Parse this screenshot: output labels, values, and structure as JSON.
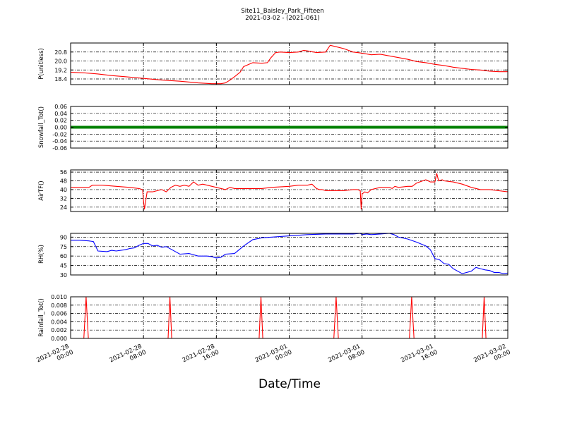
{
  "figure": {
    "title": "Site11_Baisley_Park_Fifteen",
    "subtitle": "2021-03-02 - (2021-061)",
    "xlabel": "Date/Time"
  },
  "chart_data": [
    {
      "type": "line",
      "ylabel": "P(unitless)",
      "color": "#ff0000",
      "xlim": [
        0,
        48
      ],
      "ylim": [
        17.9,
        21.6
      ],
      "yticks": [
        "18.4",
        "19.2",
        "20.0",
        "20.8"
      ],
      "ytick_values": [
        18.4,
        19.2,
        20.0,
        20.8
      ],
      "grid": true,
      "series": [
        {
          "x": [
            0,
            1.5,
            3,
            4.5,
            6,
            8,
            10,
            12,
            14,
            15.5,
            16.5,
            17,
            17.5,
            18,
            18.6,
            19,
            20,
            21,
            21.6,
            22,
            22.5,
            23,
            24,
            25,
            25.6,
            26,
            27,
            28,
            28.5,
            29,
            30,
            31,
            31.5,
            32,
            33,
            34,
            35,
            36,
            37,
            38,
            39,
            40,
            41,
            42,
            43,
            44,
            45,
            46,
            47,
            48
          ],
          "y": [
            19.0,
            18.95,
            18.85,
            18.7,
            18.6,
            18.45,
            18.3,
            18.2,
            18.05,
            17.98,
            17.98,
            18.05,
            18.3,
            18.6,
            19.0,
            19.5,
            19.85,
            19.8,
            19.85,
            20.3,
            20.75,
            20.8,
            20.75,
            20.8,
            20.95,
            20.9,
            20.75,
            20.8,
            21.4,
            21.3,
            21.1,
            20.8,
            20.75,
            20.7,
            20.55,
            20.6,
            20.45,
            20.3,
            20.15,
            19.95,
            19.85,
            19.7,
            19.6,
            19.45,
            19.35,
            19.25,
            19.2,
            19.1,
            19.05,
            19.05
          ]
        }
      ]
    },
    {
      "type": "line",
      "ylabel": "Snowfall_Tot()",
      "color": "#008000",
      "xlim": [
        0,
        48
      ],
      "ylim": [
        -0.06,
        0.06
      ],
      "yticks": [
        "-0.06",
        "-0.04",
        "-0.02",
        "0.00",
        "0.02",
        "0.04",
        "0.06"
      ],
      "ytick_values": [
        -0.06,
        -0.04,
        -0.02,
        0.0,
        0.02,
        0.04,
        0.06
      ],
      "grid": true,
      "series": [
        {
          "x": [
            0,
            48
          ],
          "y": [
            0,
            0
          ]
        }
      ]
    },
    {
      "type": "line",
      "ylabel": "AirTF()",
      "color": "#ff0000",
      "xlim": [
        0,
        48
      ],
      "ylim": [
        20,
        58
      ],
      "yticks": [
        "24",
        "32",
        "40",
        "48",
        "56"
      ],
      "ytick_values": [
        24,
        32,
        40,
        48,
        56
      ],
      "grid": true,
      "series": [
        {
          "x": [
            0,
            2,
            2.4,
            3.5,
            5,
            6.5,
            7.5,
            7.9,
            8.0,
            8.1,
            8.4,
            9,
            10,
            10.5,
            11,
            11.5,
            12,
            12.5,
            13,
            13.5,
            14,
            14.5,
            15,
            16,
            17,
            17.5,
            18,
            19,
            20,
            21,
            22,
            24,
            25,
            26,
            26.5,
            27,
            27.3,
            27.6,
            28,
            29,
            30,
            31,
            31.5,
            31.8,
            31.9,
            32,
            32.3,
            32.6,
            33,
            34,
            35,
            35.3,
            35.6,
            36,
            37,
            37.5,
            38,
            39,
            39.5,
            40,
            40.2,
            40.4,
            40.8,
            41,
            42,
            43,
            44,
            45,
            46,
            47,
            48
          ],
          "y": [
            42,
            42,
            44,
            44,
            43,
            42,
            41,
            40,
            30,
            22,
            38,
            38,
            40,
            38,
            42,
            44,
            43,
            44,
            43,
            47,
            44,
            45,
            44,
            42,
            40,
            42,
            41,
            41,
            41,
            41,
            42,
            43,
            44,
            44,
            45,
            41,
            40,
            40,
            39,
            39,
            39,
            40,
            40,
            39,
            22,
            36,
            38,
            37,
            40,
            42,
            42,
            41,
            43,
            42,
            43,
            43,
            46,
            49,
            47,
            47,
            55,
            48,
            49,
            48,
            47,
            45,
            42,
            40,
            40,
            39,
            38
          ]
        }
      ]
    },
    {
      "type": "line",
      "ylabel": "RH(%)",
      "color": "#0000ff",
      "xlim": [
        0,
        48
      ],
      "ylim": [
        30,
        96
      ],
      "yticks": [
        "30",
        "45",
        "60",
        "75",
        "90"
      ],
      "ytick_values": [
        30,
        45,
        60,
        75,
        90
      ],
      "grid": true,
      "series": [
        {
          "x": [
            0,
            1,
            2,
            2.5,
            3,
            4,
            4.5,
            5,
            6,
            6.5,
            7,
            7.5,
            8,
            8.5,
            9,
            9.5,
            10,
            10.5,
            11,
            12,
            13,
            13.5,
            14,
            15,
            15.5,
            16,
            16.5,
            17,
            18,
            19,
            20,
            21,
            22,
            24,
            26,
            28,
            30,
            31,
            31.8,
            32,
            32.5,
            33,
            34,
            35,
            35.5,
            36,
            37,
            38,
            39,
            39.5,
            40,
            40.5,
            41,
            41.5,
            42,
            43,
            44,
            44.5,
            45,
            45.5,
            46,
            46.5,
            47,
            47.5,
            48
          ],
          "y": [
            85,
            85,
            84,
            83,
            68,
            67,
            69,
            68,
            70,
            72,
            73,
            77,
            80,
            80,
            76,
            77,
            74,
            75,
            71,
            63,
            64,
            62,
            60,
            60,
            59,
            57,
            58,
            63,
            64,
            76,
            86,
            89,
            90,
            92,
            94,
            95,
            95,
            95,
            96,
            94,
            95,
            94,
            95,
            96,
            94,
            90,
            87,
            82,
            76,
            70,
            56,
            54,
            48,
            47,
            40,
            32,
            36,
            42,
            40,
            38,
            37,
            34,
            34,
            32,
            33
          ]
        }
      ]
    },
    {
      "type": "line",
      "ylabel": "Rainfall_Tot()",
      "color": "#ff0000",
      "xlim": [
        0,
        48
      ],
      "ylim": [
        0,
        0.01
      ],
      "yticks": [
        "0.000",
        "0.002",
        "0.004",
        "0.006",
        "0.008",
        "0.010"
      ],
      "ytick_values": [
        0,
        0.002,
        0.004,
        0.006,
        0.008,
        0.01
      ],
      "grid": true,
      "series": [
        {
          "x": [
            0,
            1.45,
            1.7,
            1.95,
            10.7,
            10.9,
            11.1,
            20.7,
            20.9,
            21.1,
            28.9,
            29.15,
            29.4,
            37.2,
            37.45,
            37.7,
            45.2,
            45.4,
            45.6,
            48
          ],
          "y": [
            0,
            0,
            0.01,
            0,
            0,
            0.01,
            0,
            0,
            0.01,
            0,
            0,
            0.01,
            0,
            0,
            0.01,
            0,
            0,
            0.01,
            0,
            0
          ]
        }
      ]
    }
  ],
  "x_axis": {
    "ticks": [
      {
        "value": 0,
        "date": "2021-02-28",
        "time": "00:00"
      },
      {
        "value": 8,
        "date": "2021-02-28",
        "time": "08:00"
      },
      {
        "value": 16,
        "date": "2021-02-28",
        "time": "16:00"
      },
      {
        "value": 24,
        "date": "2021-03-01",
        "time": "00:00"
      },
      {
        "value": 32,
        "date": "2021-03-01",
        "time": "08:00"
      },
      {
        "value": 40,
        "date": "2021-03-01",
        "time": "16:00"
      },
      {
        "value": 48,
        "date": "2021-03-02",
        "time": "00:00"
      }
    ]
  }
}
